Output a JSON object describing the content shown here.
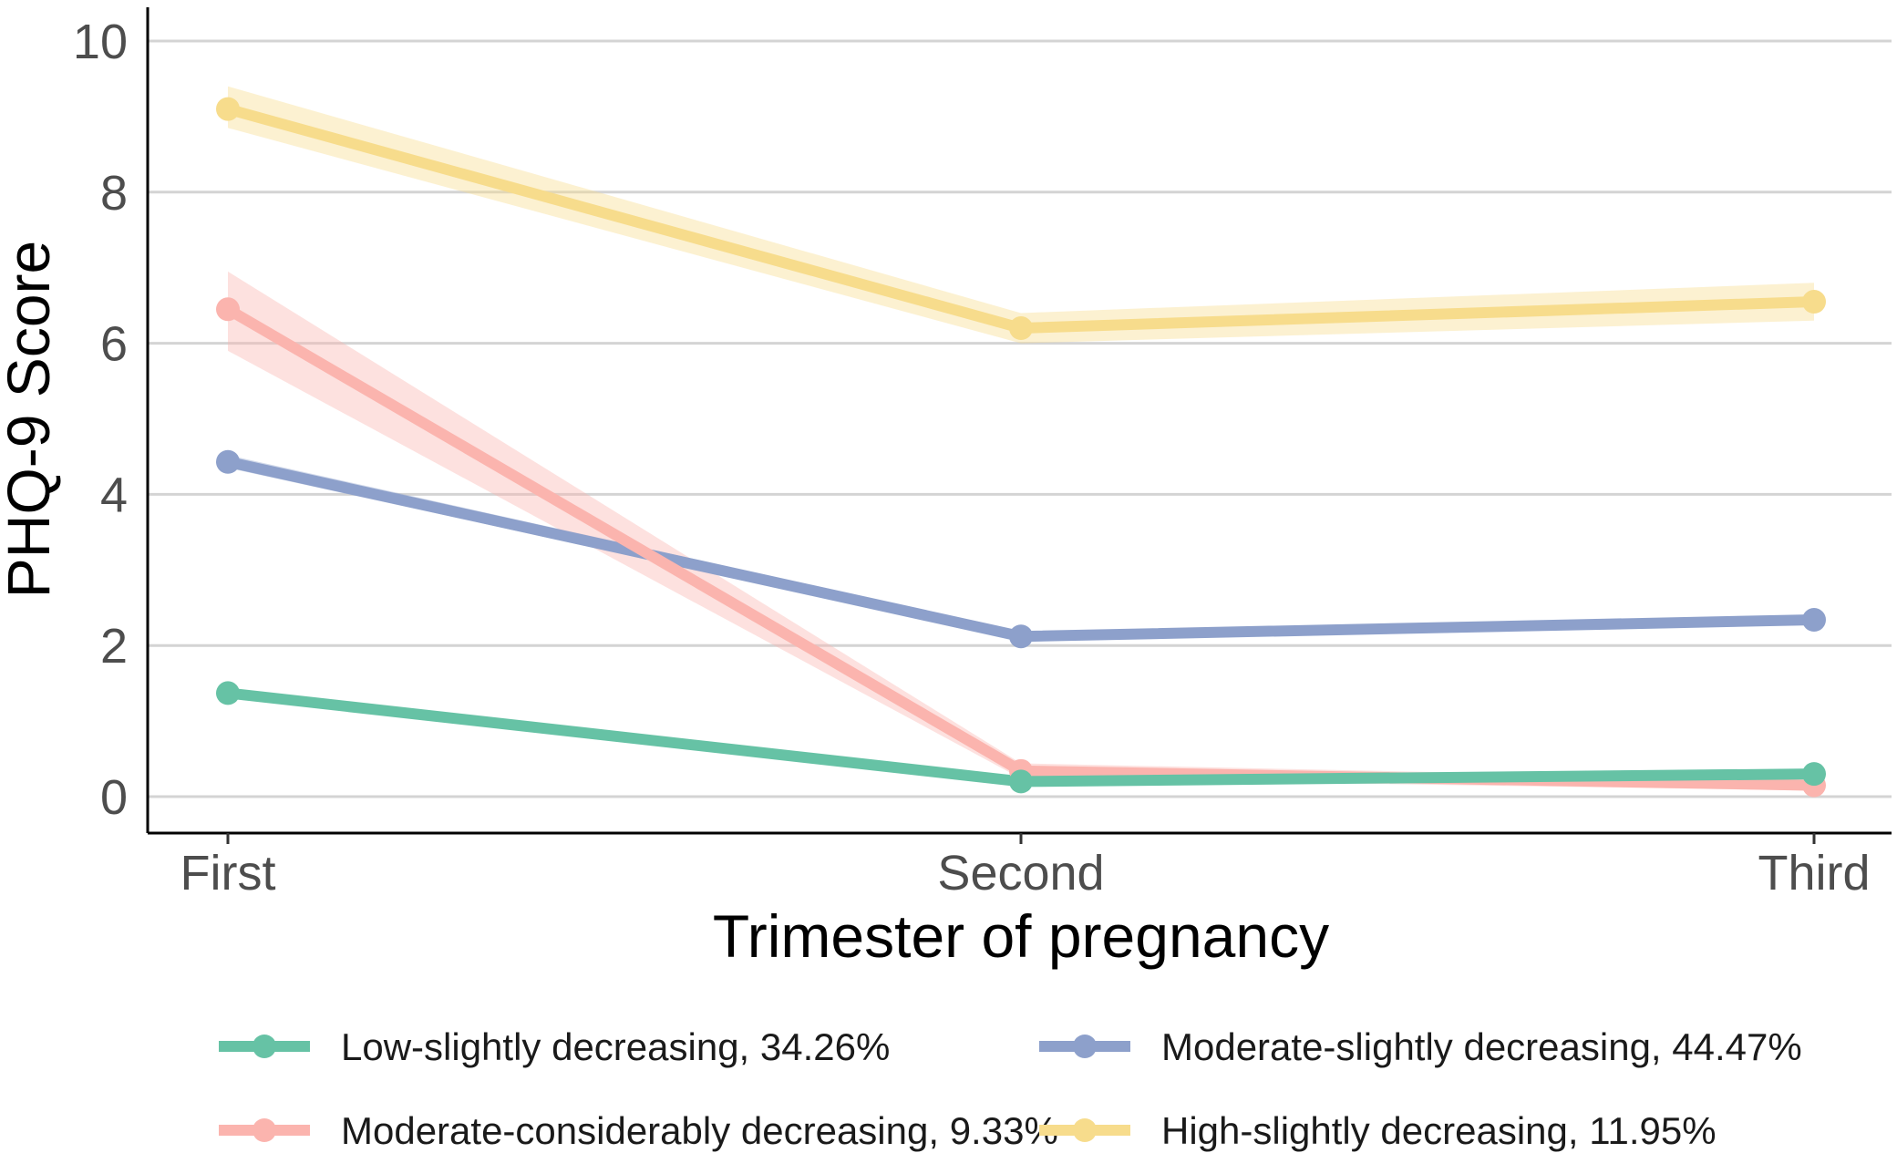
{
  "chart_data": {
    "type": "line",
    "xlabel": "Trimester of pregnancy",
    "ylabel": "PHQ-9 Score",
    "categories": [
      "First",
      "Second",
      "Third"
    ],
    "ylim": [
      -0.5,
      10.4
    ],
    "yticks": [
      0,
      2,
      4,
      6,
      8,
      10
    ],
    "grid": "horizontal",
    "legend_position": "bottom",
    "series": [
      {
        "name": "High-slightly decreasing, 11.95%",
        "color": "#f7dc8c",
        "values": [
          9.1,
          6.2,
          6.55
        ],
        "ci_lower": [
          8.85,
          6.0,
          6.3
        ],
        "ci_upper": [
          9.4,
          6.4,
          6.8
        ]
      },
      {
        "name": "Moderate-slightly decreasing, 44.47%",
        "color": "#8da0cb",
        "values": [
          4.43,
          2.12,
          2.34
        ],
        "ci_lower": [
          4.35,
          2.06,
          2.28
        ],
        "ci_upper": [
          4.52,
          2.18,
          2.4
        ]
      },
      {
        "name": "Moderate-considerably decreasing, 9.33%",
        "color": "#fbb4ae",
        "values": [
          6.45,
          0.34,
          0.15
        ],
        "ci_lower": [
          5.9,
          0.24,
          0.08
        ],
        "ci_upper": [
          6.95,
          0.44,
          0.22
        ]
      },
      {
        "name": "Low-slightly decreasing, 34.26%",
        "color": "#66c2a5",
        "values": [
          1.37,
          0.2,
          0.3
        ],
        "ci_lower": [
          1.3,
          0.16,
          0.25
        ],
        "ci_upper": [
          1.44,
          0.24,
          0.35
        ]
      }
    ],
    "legend_order": [
      "Low-slightly decreasing, 34.26%",
      "Moderate-slightly decreasing, 44.47%",
      "Moderate-considerably decreasing, 9.33%",
      "High-slightly decreasing, 11.95%"
    ]
  }
}
